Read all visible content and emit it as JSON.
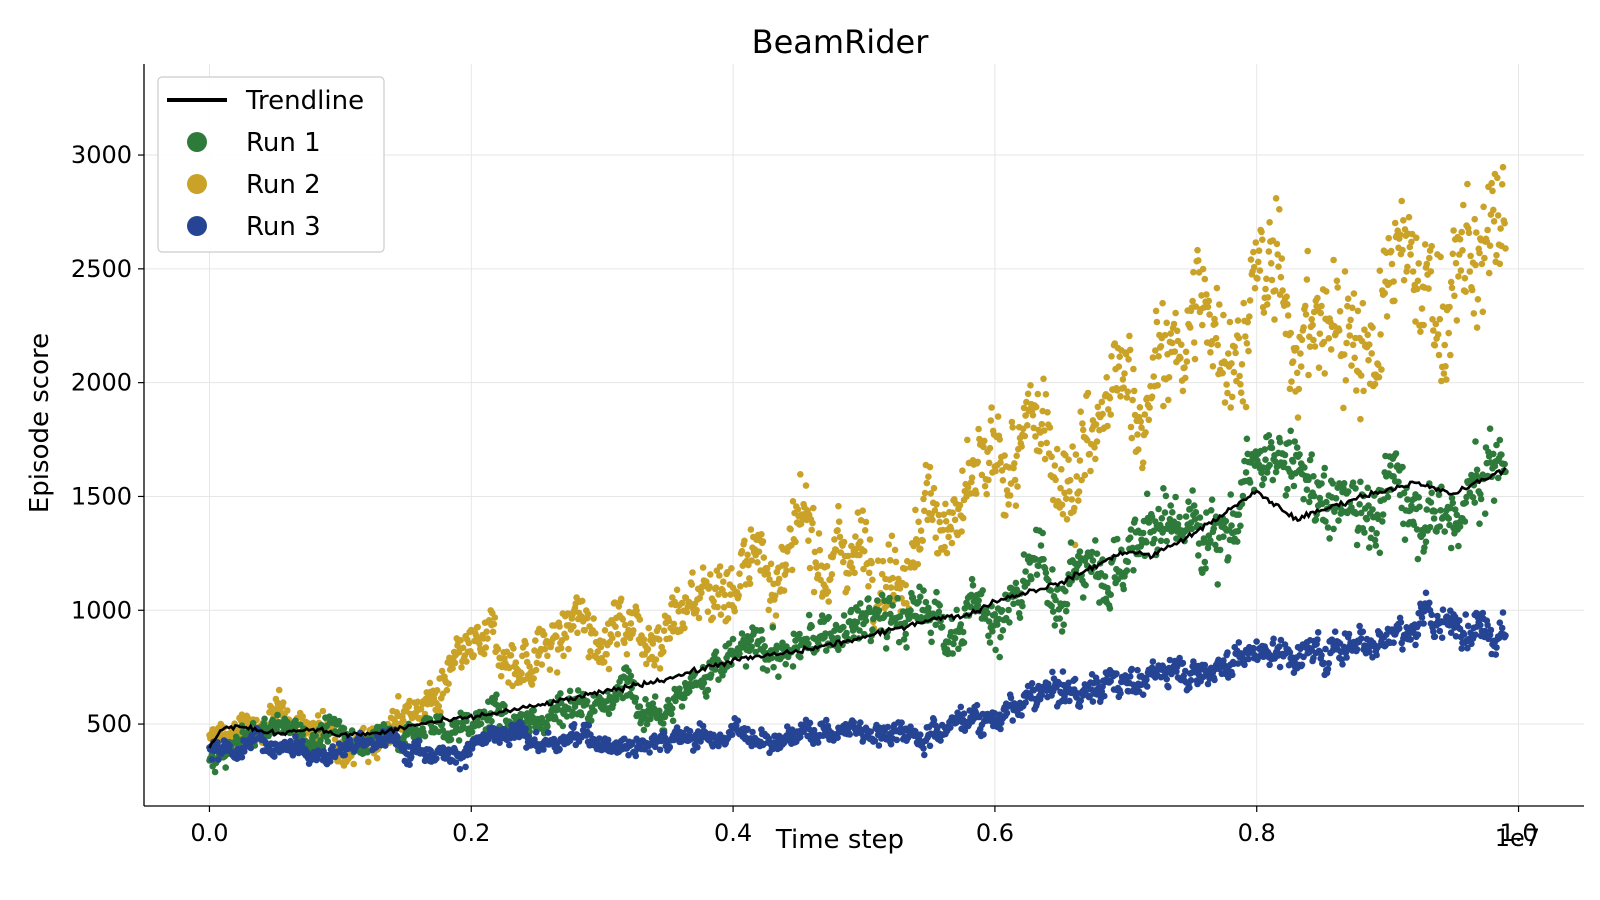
{
  "chart_data": {
    "type": "scatter",
    "title": "BeamRider",
    "xlabel": "Time step",
    "ylabel": "Episode score",
    "x_multiplier_label": "1e7",
    "xlim": [
      -0.05,
      1.05
    ],
    "ylim": [
      140,
      3400
    ],
    "x_ticks": [
      0.0,
      0.2,
      0.4,
      0.6,
      0.8,
      1.0
    ],
    "x_tick_labels": [
      "0.0",
      "0.2",
      "0.4",
      "0.6",
      "0.8",
      "1.0"
    ],
    "y_ticks": [
      500,
      1000,
      1500,
      2000,
      2500,
      3000
    ],
    "y_tick_labels": [
      "500",
      "1000",
      "1500",
      "2000",
      "2500",
      "3000"
    ],
    "grid": true,
    "legend_position": "top-left",
    "legend": [
      {
        "name": "Trendline",
        "kind": "line",
        "color": "#000000"
      },
      {
        "name": "Run 1",
        "kind": "marker",
        "color": "#2e7a3a"
      },
      {
        "name": "Run 2",
        "kind": "marker",
        "color": "#c9a227"
      },
      {
        "name": "Run 3",
        "kind": "marker",
        "color": "#264494"
      }
    ],
    "series": [
      {
        "name": "Run 1",
        "color": "#2e7a3a",
        "x": [
          0.0,
          0.05,
          0.1,
          0.15,
          0.2,
          0.25,
          0.3,
          0.35,
          0.4,
          0.45,
          0.5,
          0.55,
          0.6,
          0.65,
          0.7,
          0.75,
          0.8,
          0.85,
          0.9,
          0.95,
          0.99
        ],
        "y": [
          350,
          480,
          440,
          470,
          500,
          560,
          650,
          700,
          790,
          820,
          920,
          950,
          1020,
          1120,
          1300,
          1400,
          1580,
          1450,
          1560,
          1550,
          1620
        ],
        "noise": [
          60,
          60,
          60,
          60,
          70,
          80,
          80,
          90,
          90,
          100,
          110,
          120,
          140,
          150,
          150,
          160,
          170,
          170,
          180,
          180,
          180
        ]
      },
      {
        "name": "Run 2",
        "color": "#c9a227",
        "x": [
          0.0,
          0.05,
          0.1,
          0.15,
          0.2,
          0.25,
          0.3,
          0.35,
          0.4,
          0.45,
          0.5,
          0.55,
          0.6,
          0.65,
          0.7,
          0.75,
          0.8,
          0.85,
          0.9,
          0.95,
          0.99
        ],
        "y": [
          420,
          520,
          460,
          570,
          700,
          820,
          940,
          1060,
          1220,
          1220,
          1330,
          1500,
          1450,
          1680,
          1820,
          2180,
          2400,
          2200,
          2350,
          2380,
          2550
        ],
        "noise": [
          70,
          70,
          70,
          90,
          110,
          130,
          140,
          150,
          160,
          170,
          180,
          200,
          220,
          240,
          260,
          280,
          300,
          300,
          320,
          320,
          320
        ]
      },
      {
        "name": "Run 3",
        "color": "#264494",
        "x": [
          0.0,
          0.05,
          0.1,
          0.15,
          0.2,
          0.25,
          0.3,
          0.35,
          0.4,
          0.45,
          0.5,
          0.55,
          0.6,
          0.65,
          0.7,
          0.75,
          0.8,
          0.85,
          0.9,
          0.95,
          0.99
        ],
        "y": [
          410,
          440,
          430,
          410,
          430,
          420,
          440,
          450,
          460,
          480,
          490,
          510,
          560,
          630,
          700,
          770,
          840,
          840,
          950,
          940,
          990
        ],
        "noise": [
          50,
          50,
          50,
          50,
          50,
          50,
          50,
          50,
          50,
          55,
          55,
          60,
          60,
          65,
          70,
          70,
          75,
          75,
          80,
          80,
          80
        ]
      },
      {
        "name": "Trendline",
        "color": "#000000",
        "kind": "line",
        "x": [
          0.0,
          0.01,
          0.02,
          0.05,
          0.08,
          0.1,
          0.13,
          0.16,
          0.2,
          0.25,
          0.3,
          0.35,
          0.4,
          0.45,
          0.5,
          0.55,
          0.58,
          0.6,
          0.65,
          0.7,
          0.72,
          0.75,
          0.8,
          0.83,
          0.85,
          0.88,
          0.92,
          0.95,
          0.99
        ],
        "y": [
          400,
          480,
          490,
          460,
          480,
          450,
          460,
          500,
          530,
          580,
          640,
          700,
          780,
          820,
          880,
          960,
          980,
          1040,
          1120,
          1260,
          1240,
          1330,
          1520,
          1400,
          1440,
          1500,
          1560,
          1510,
          1620
        ]
      }
    ]
  }
}
